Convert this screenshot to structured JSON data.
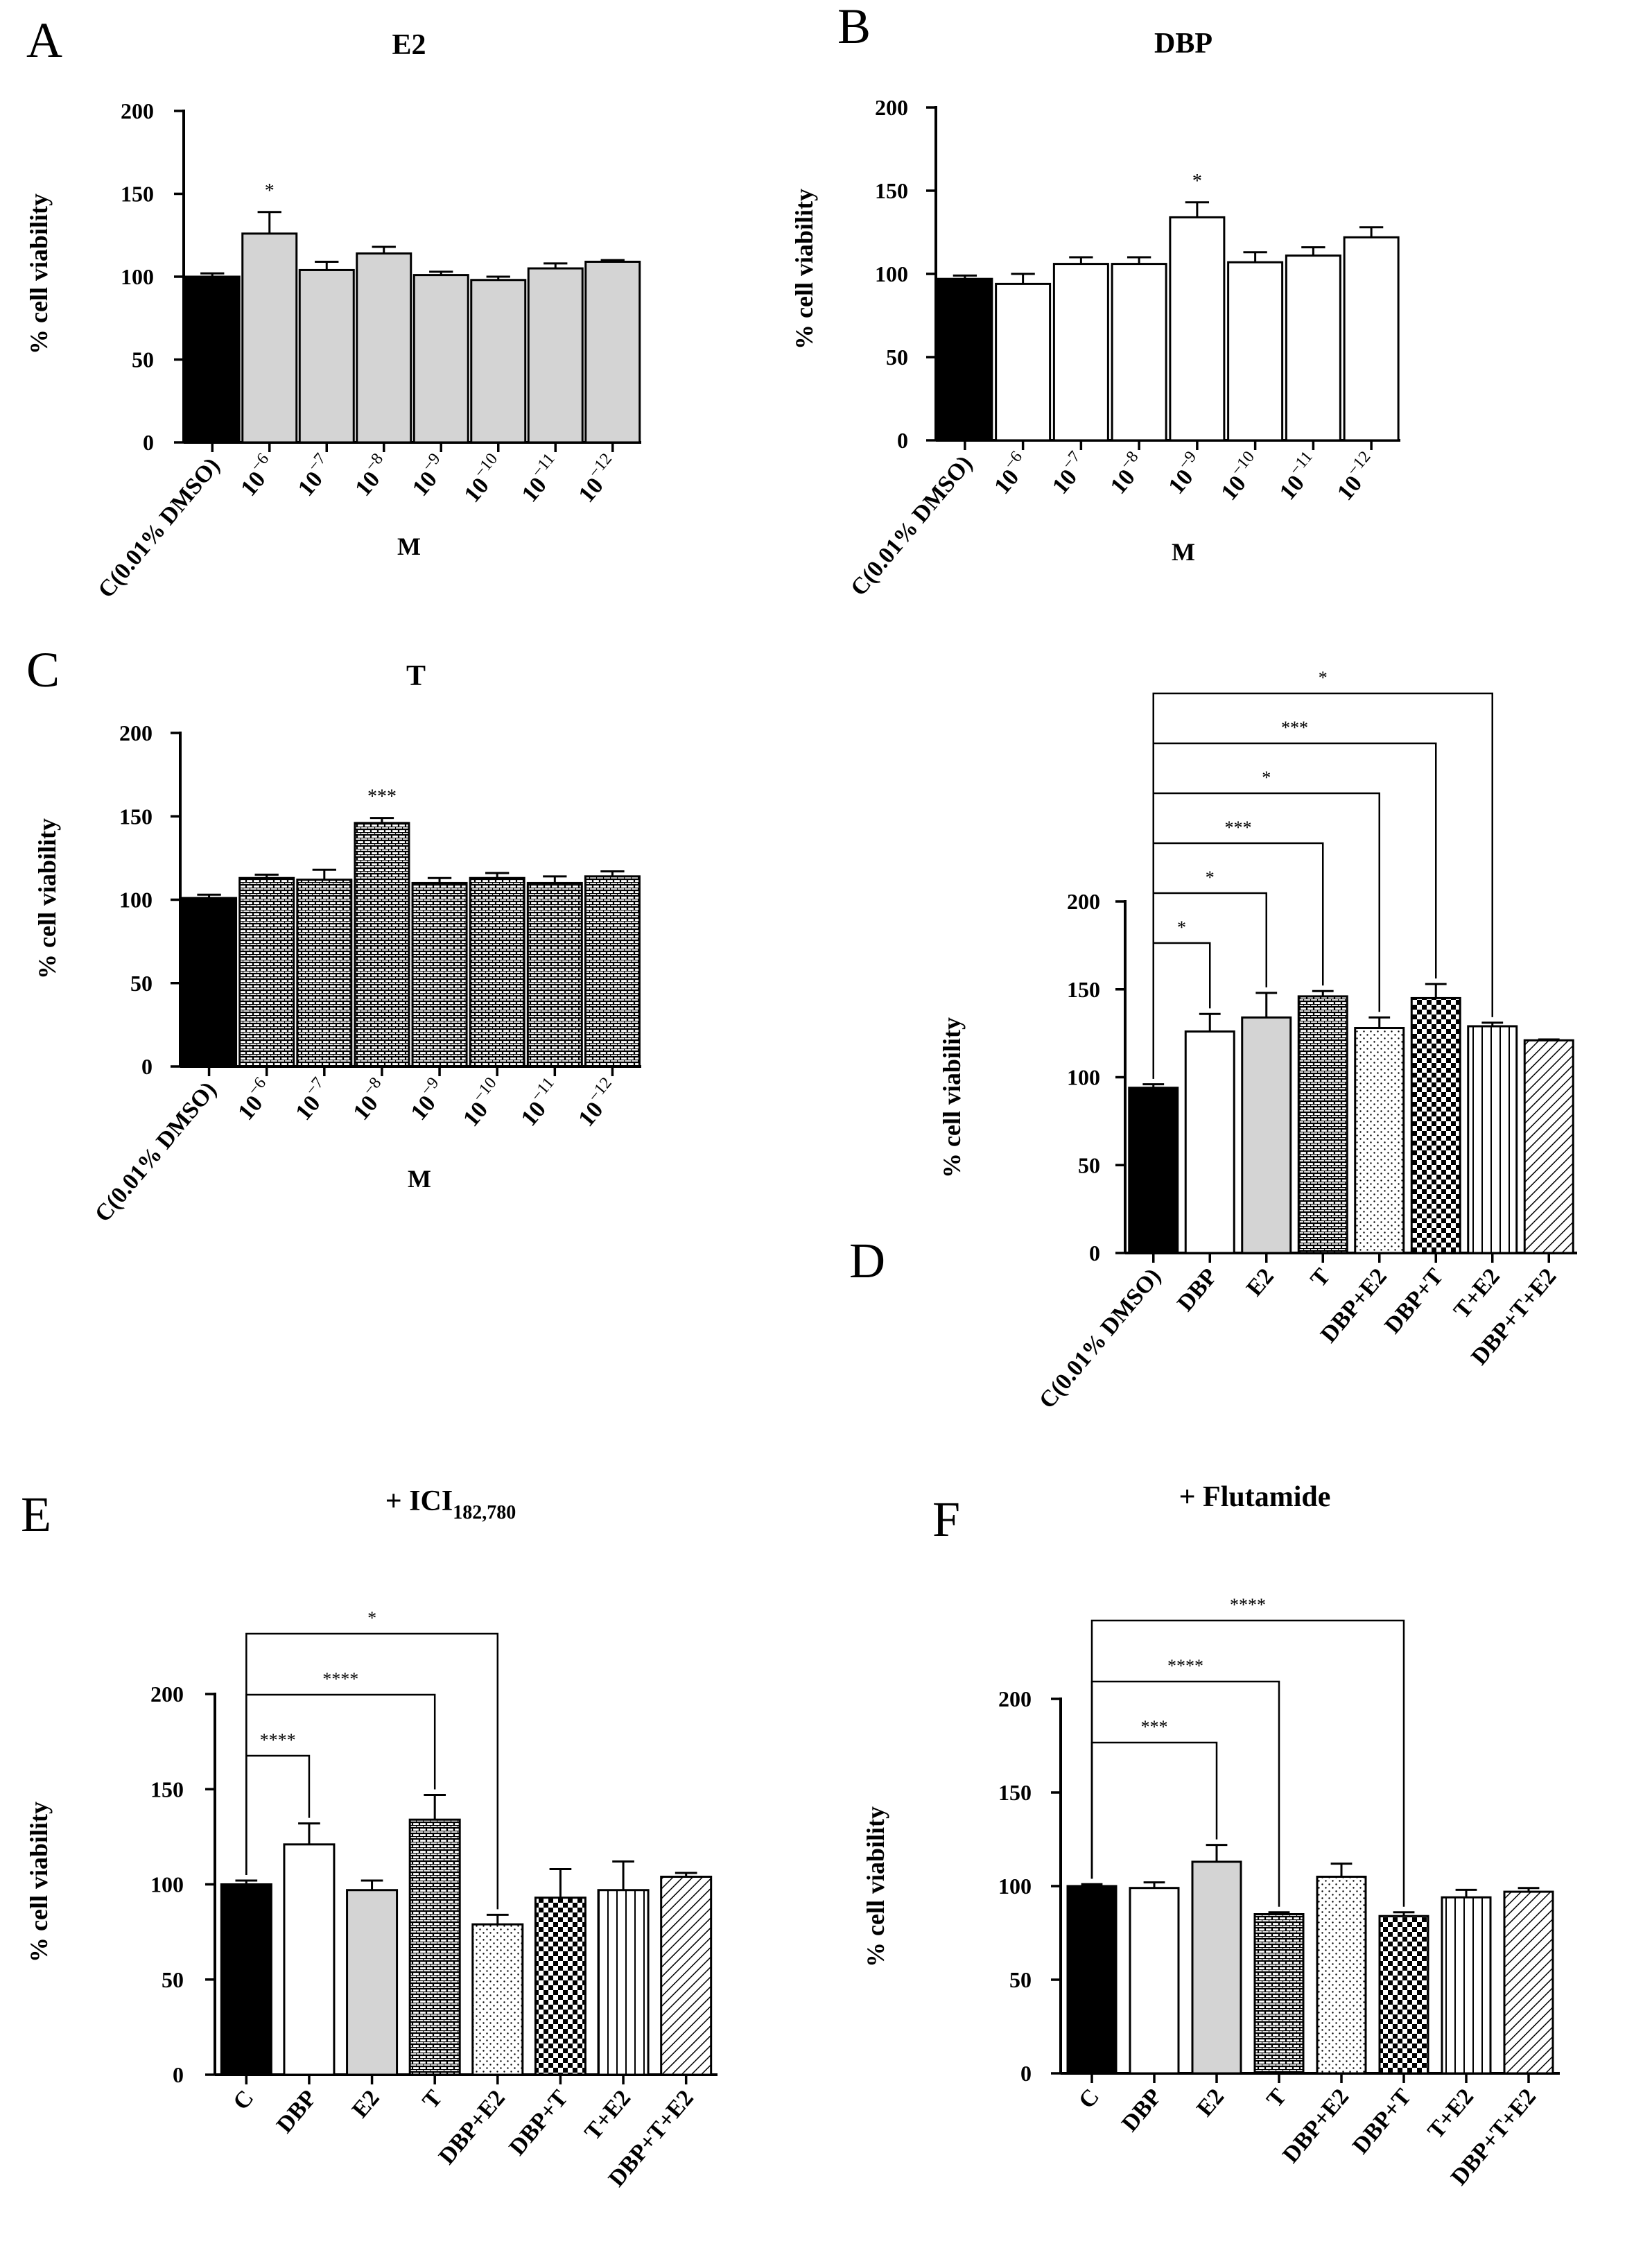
{
  "figure": {
    "panels": [
      "A",
      "B",
      "C",
      "D",
      "E",
      "F"
    ]
  },
  "colors": {
    "control": "#000000",
    "e2_fill": "#d4d4d4",
    "dbp_fill": "#ffffff",
    "axis": "#000000"
  },
  "chart_data": [
    {
      "panel": "A",
      "type": "bar",
      "title": "E2",
      "xlabel": "M",
      "ylabel": "% cell viability",
      "ylim": [
        0,
        200
      ],
      "yticks": [
        "0",
        "50",
        "100",
        "150",
        "200"
      ],
      "categories": [
        {
          "base": "C(0.01% DMSO)",
          "exp": ""
        },
        {
          "base": "10",
          "exp": "−6"
        },
        {
          "base": "10",
          "exp": "−7"
        },
        {
          "base": "10",
          "exp": "−8"
        },
        {
          "base": "10",
          "exp": "−9"
        },
        {
          "base": "10",
          "exp": "−10"
        },
        {
          "base": "10",
          "exp": "−11"
        },
        {
          "base": "10",
          "exp": "−12"
        }
      ],
      "values": [
        100,
        126,
        104,
        114,
        101,
        98,
        105,
        109
      ],
      "errors": [
        2,
        13,
        5,
        4,
        2,
        2,
        3,
        1
      ],
      "fills": [
        "black",
        "gray",
        "gray",
        "gray",
        "gray",
        "gray",
        "gray",
        "gray"
      ],
      "significance": [
        {
          "index": 1,
          "label": "*"
        }
      ],
      "brackets": []
    },
    {
      "panel": "B",
      "type": "bar",
      "title": "DBP",
      "xlabel": "M",
      "ylabel": "% cell viability",
      "ylim": [
        0,
        200
      ],
      "yticks": [
        "0",
        "50",
        "100",
        "150",
        "200"
      ],
      "categories": [
        {
          "base": "C(0.01% DMSO)",
          "exp": ""
        },
        {
          "base": "10",
          "exp": "−6"
        },
        {
          "base": "10",
          "exp": "−7"
        },
        {
          "base": "10",
          "exp": "−8"
        },
        {
          "base": "10",
          "exp": "−9"
        },
        {
          "base": "10",
          "exp": "−10"
        },
        {
          "base": "10",
          "exp": "−11"
        },
        {
          "base": "10",
          "exp": "−12"
        }
      ],
      "values": [
        97,
        94,
        106,
        106,
        134,
        107,
        111,
        122
      ],
      "errors": [
        2,
        6,
        4,
        4,
        9,
        6,
        5,
        6
      ],
      "fills": [
        "black",
        "white",
        "white",
        "white",
        "white",
        "white",
        "white",
        "white"
      ],
      "significance": [
        {
          "index": 4,
          "label": "*"
        }
      ],
      "brackets": []
    },
    {
      "panel": "C",
      "type": "bar",
      "title": "T",
      "xlabel": "M",
      "ylabel": "% cell viability",
      "ylim": [
        0,
        200
      ],
      "yticks": [
        "0",
        "50",
        "100",
        "150",
        "200"
      ],
      "categories": [
        {
          "base": "C(0.01% DMSO)",
          "exp": ""
        },
        {
          "base": "10",
          "exp": "−6"
        },
        {
          "base": "10",
          "exp": "−7"
        },
        {
          "base": "10",
          "exp": "−8"
        },
        {
          "base": "10",
          "exp": "−9"
        },
        {
          "base": "10",
          "exp": "−10"
        },
        {
          "base": "10",
          "exp": "−11"
        },
        {
          "base": "10",
          "exp": "−12"
        }
      ],
      "values": [
        101,
        113,
        112,
        146,
        110,
        113,
        110,
        114
      ],
      "errors": [
        2,
        2,
        6,
        3,
        3,
        3,
        4,
        3
      ],
      "fills": [
        "black",
        "brick",
        "brick",
        "brick",
        "brick",
        "brick",
        "brick",
        "brick"
      ],
      "significance": [
        {
          "index": 3,
          "label": "***"
        }
      ],
      "brackets": []
    },
    {
      "panel": "D",
      "type": "bar",
      "title": "",
      "xlabel": "",
      "ylabel": "% cell viability",
      "ylim": [
        0,
        200
      ],
      "yticks": [
        "0",
        "50",
        "100",
        "150",
        "200"
      ],
      "categories": [
        {
          "base": "C(0.01% DMSO)",
          "exp": ""
        },
        {
          "base": "DBP",
          "exp": ""
        },
        {
          "base": "E2",
          "exp": ""
        },
        {
          "base": "T",
          "exp": ""
        },
        {
          "base": "DBP+E2",
          "exp": ""
        },
        {
          "base": "DBP+T",
          "exp": ""
        },
        {
          "base": "T+E2",
          "exp": ""
        },
        {
          "base": "DBP+T+E2",
          "exp": ""
        }
      ],
      "values": [
        94,
        126,
        134,
        146,
        128,
        145,
        129,
        121
      ],
      "errors": [
        2,
        10,
        14,
        3,
        6,
        8,
        2,
        0.5
      ],
      "fills": [
        "black",
        "white",
        "gray",
        "brick",
        "dots",
        "checker",
        "vlines",
        "diag"
      ],
      "significance": [],
      "brackets": [
        {
          "to": 1,
          "label": "*"
        },
        {
          "to": 2,
          "label": "*"
        },
        {
          "to": 3,
          "label": "***"
        },
        {
          "to": 4,
          "label": "*"
        },
        {
          "to": 5,
          "label": "***"
        },
        {
          "to": 6,
          "label": "*"
        }
      ]
    },
    {
      "panel": "E",
      "type": "bar",
      "title": "+ ICI",
      "title_sub": "182,780",
      "xlabel": "",
      "ylabel": "% cell viability",
      "ylim": [
        0,
        200
      ],
      "yticks": [
        "0",
        "50",
        "100",
        "150",
        "200"
      ],
      "categories": [
        {
          "base": "C",
          "exp": ""
        },
        {
          "base": "DBP",
          "exp": ""
        },
        {
          "base": "E2",
          "exp": ""
        },
        {
          "base": "T",
          "exp": ""
        },
        {
          "base": "DBP+E2",
          "exp": ""
        },
        {
          "base": "DBP+T",
          "exp": ""
        },
        {
          "base": "T+E2",
          "exp": ""
        },
        {
          "base": "DBP+T+E2",
          "exp": ""
        }
      ],
      "values": [
        100,
        121,
        97,
        134,
        79,
        93,
        97,
        104
      ],
      "errors": [
        2,
        11,
        5,
        13,
        5,
        15,
        15,
        2
      ],
      "fills": [
        "black",
        "white",
        "gray",
        "brick",
        "dots",
        "checker",
        "vlines",
        "diag"
      ],
      "significance": [],
      "brackets": [
        {
          "to": 1,
          "label": "****"
        },
        {
          "to": 3,
          "label": "****"
        },
        {
          "to": 4,
          "label": "*"
        }
      ]
    },
    {
      "panel": "F",
      "type": "bar",
      "title": "+ Flutamide",
      "xlabel": "",
      "ylabel": "% cell viability",
      "ylim": [
        0,
        200
      ],
      "yticks": [
        "0",
        "50",
        "100",
        "150",
        "200"
      ],
      "categories": [
        {
          "base": "C",
          "exp": ""
        },
        {
          "base": "DBP",
          "exp": ""
        },
        {
          "base": "E2",
          "exp": ""
        },
        {
          "base": "T",
          "exp": ""
        },
        {
          "base": "DBP+E2",
          "exp": ""
        },
        {
          "base": "DBP+T",
          "exp": ""
        },
        {
          "base": "T+E2",
          "exp": ""
        },
        {
          "base": "DBP+T+E2",
          "exp": ""
        }
      ],
      "values": [
        100,
        99,
        113,
        85,
        105,
        84,
        94,
        97
      ],
      "errors": [
        1,
        3,
        9,
        1,
        7,
        2,
        4,
        2
      ],
      "fills": [
        "black",
        "white",
        "gray",
        "brick",
        "dots",
        "checker",
        "vlines",
        "diag"
      ],
      "significance": [],
      "brackets": [
        {
          "to": 2,
          "label": "***"
        },
        {
          "to": 3,
          "label": "****"
        },
        {
          "to": 5,
          "label": "****"
        }
      ]
    }
  ]
}
